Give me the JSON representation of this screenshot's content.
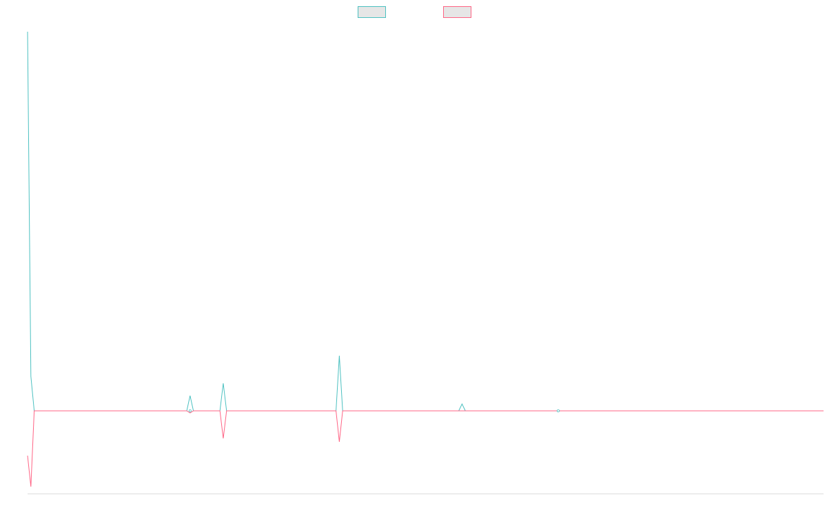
{
  "chart_data": {
    "type": "line",
    "title": "",
    "xlabel": "",
    "ylabel": "",
    "grid": false,
    "legend_position": "top-center",
    "ylim": [
      -12,
      56
    ],
    "series": [
      {
        "color": "#4bc0c0",
        "legend_fill": "#e6e6e6",
        "points": [
          [
            0,
            55
          ],
          [
            1,
            5
          ],
          [
            2,
            0
          ],
          [
            48,
            0
          ],
          [
            49,
            2.2
          ],
          [
            50,
            0
          ],
          [
            58,
            0
          ],
          [
            59,
            4
          ],
          [
            60,
            0
          ],
          [
            93,
            0
          ],
          [
            94,
            8
          ],
          [
            95,
            0
          ],
          [
            130,
            0
          ],
          [
            131,
            1
          ],
          [
            132,
            0
          ],
          [
            240,
            0
          ]
        ]
      },
      {
        "color": "#ff6384",
        "legend_fill": "#e6e6e6",
        "points": [
          [
            0,
            -6.5
          ],
          [
            1,
            -11
          ],
          [
            2,
            0
          ],
          [
            48,
            0
          ],
          [
            49,
            -0.3
          ],
          [
            50,
            0
          ],
          [
            58,
            0
          ],
          [
            59,
            -4
          ],
          [
            60,
            0
          ],
          [
            93,
            0
          ],
          [
            94,
            -4.5
          ],
          [
            95,
            0
          ],
          [
            240,
            0
          ]
        ]
      }
    ],
    "xlim": [
      0,
      240
    ],
    "axis_color": "#dcdcdc"
  }
}
